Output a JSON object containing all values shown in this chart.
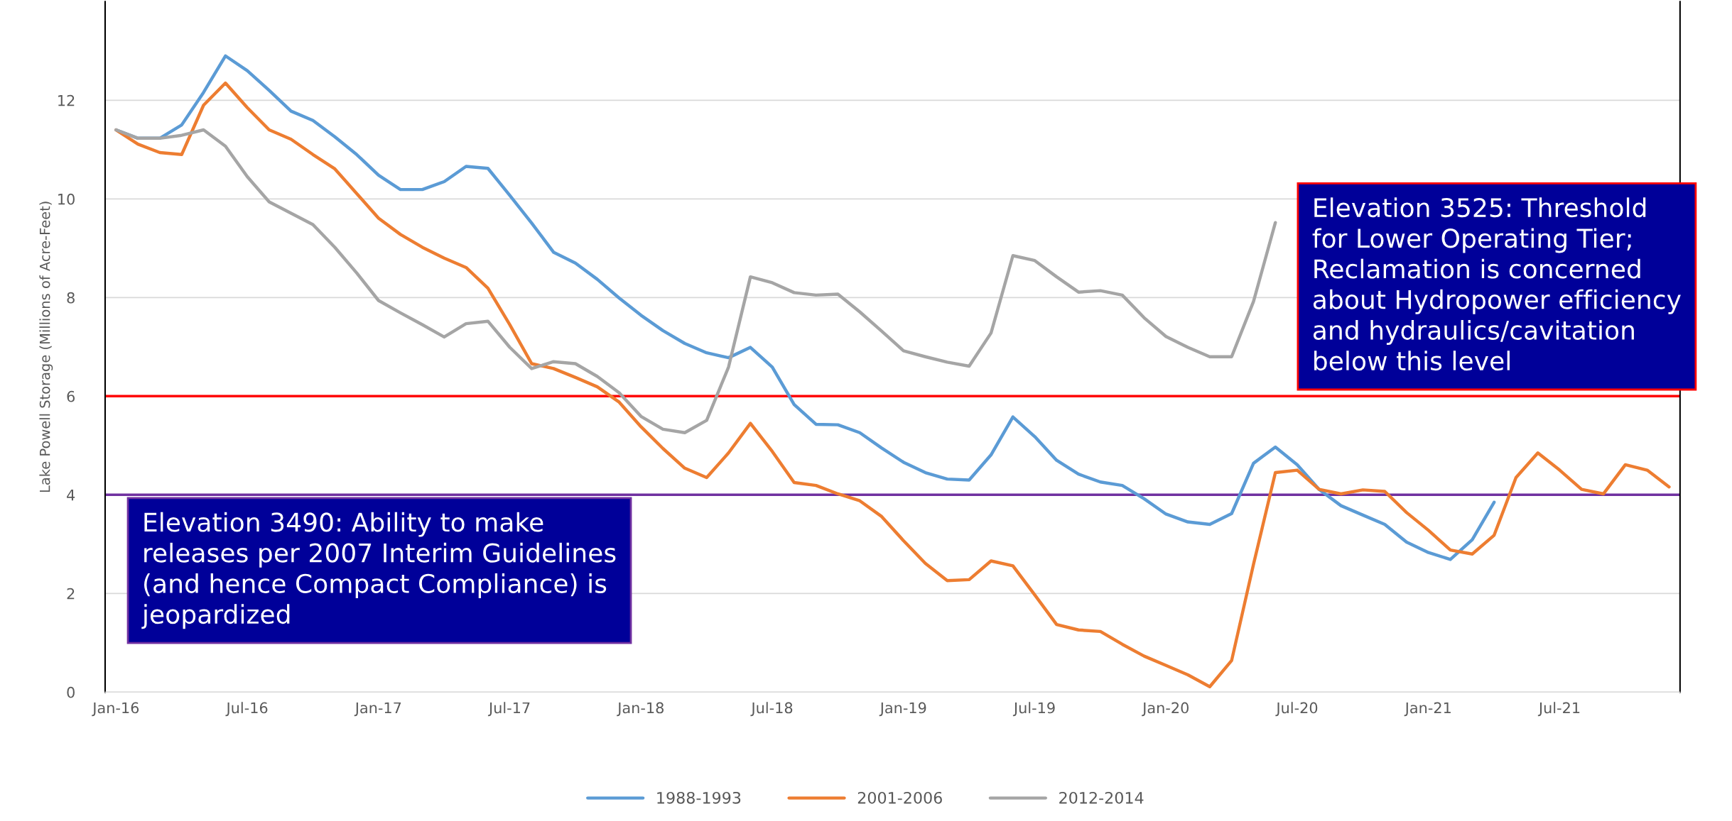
{
  "chart_data": {
    "type": "line",
    "ylabel": "Lake Powell Storage (Millions of Acre-Feet)",
    "categories": [
      "Jan-16",
      null,
      null,
      null,
      null,
      null,
      "Jul-16",
      null,
      null,
      null,
      null,
      null,
      "Jan-17",
      null,
      null,
      null,
      null,
      null,
      "Jul-17",
      null,
      null,
      null,
      null,
      null,
      "Jan-18",
      null,
      null,
      null,
      null,
      null,
      "Jul-18",
      null,
      null,
      null,
      null,
      null,
      "Jan-19",
      null,
      null,
      null,
      null,
      null,
      "Jul-19",
      null,
      null,
      null,
      null,
      null,
      "Jan-20",
      null,
      null,
      null,
      null,
      null,
      "Jul-20",
      null,
      null,
      null,
      null,
      null,
      "Jan-21",
      null,
      null,
      null,
      null,
      null,
      "Jul-21",
      null,
      null,
      null,
      null,
      null
    ],
    "series": [
      {
        "name": "1988-1993",
        "color": "#5b9bd5",
        "values": [
          11.4,
          11.23,
          11.23,
          11.5,
          12.16,
          12.9,
          12.6,
          12.2,
          11.78,
          11.59,
          11.26,
          10.9,
          10.48,
          10.19,
          10.19,
          10.35,
          10.66,
          10.62,
          10.07,
          9.51,
          8.92,
          8.7,
          8.37,
          7.99,
          7.64,
          7.33,
          7.07,
          6.88,
          6.78,
          6.99,
          6.59,
          5.83,
          5.43,
          5.42,
          5.26,
          4.95,
          4.66,
          4.45,
          4.32,
          4.3,
          4.81,
          5.58,
          5.18,
          4.7,
          4.42,
          4.26,
          4.19,
          3.92,
          3.61,
          3.45,
          3.4,
          3.62,
          4.64,
          4.97,
          4.61,
          4.11,
          3.78,
          3.59,
          3.4,
          3.04,
          2.83,
          2.69,
          3.09,
          3.85,
          null,
          null,
          null,
          null,
          null,
          null,
          null,
          null
        ]
      },
      {
        "name": "2001-2006",
        "color": "#ed7d31",
        "values": [
          11.4,
          11.11,
          10.94,
          10.9,
          11.9,
          12.35,
          11.85,
          11.4,
          11.21,
          10.9,
          10.61,
          10.11,
          9.61,
          9.28,
          9.02,
          8.8,
          8.61,
          8.19,
          7.45,
          6.66,
          6.56,
          6.38,
          6.19,
          5.88,
          5.38,
          4.94,
          4.54,
          4.35,
          4.85,
          5.45,
          4.88,
          4.25,
          4.19,
          4.02,
          3.88,
          3.56,
          3.07,
          2.61,
          2.26,
          2.28,
          2.66,
          2.56,
          1.97,
          1.37,
          1.26,
          1.23,
          0.97,
          0.73,
          0.54,
          0.35,
          0.11,
          0.64,
          2.59,
          4.45,
          4.5,
          4.11,
          4.02,
          4.1,
          4.07,
          3.64,
          3.28,
          2.88,
          2.8,
          3.18,
          4.35,
          4.85,
          4.5,
          4.11,
          4.02,
          4.61,
          4.5,
          4.16
        ]
      },
      {
        "name": "2012-2014",
        "color": "#a5a5a5",
        "values": [
          11.4,
          11.23,
          11.23,
          11.29,
          11.4,
          11.07,
          10.45,
          9.94,
          9.71,
          9.48,
          9.02,
          8.5,
          7.94,
          7.69,
          7.45,
          7.2,
          7.47,
          7.52,
          6.99,
          6.56,
          6.7,
          6.66,
          6.4,
          6.07,
          5.59,
          5.33,
          5.26,
          5.51,
          6.59,
          8.42,
          8.3,
          8.1,
          8.05,
          8.07,
          7.71,
          7.32,
          6.92,
          6.8,
          6.69,
          6.61,
          7.28,
          8.85,
          8.75,
          8.42,
          8.11,
          8.14,
          8.05,
          7.59,
          7.21,
          6.99,
          6.8,
          6.8,
          7.92,
          9.52,
          null,
          null,
          null,
          null,
          null,
          null,
          null,
          null,
          null,
          null,
          null,
          null,
          null,
          null,
          null,
          null,
          null,
          null
        ]
      }
    ],
    "ylim": [
      0,
      14
    ],
    "yticks": [
      0,
      2,
      4,
      6,
      8,
      10,
      12
    ],
    "grid": "y",
    "legend": "bottom",
    "marker": "none",
    "line_style": "solid",
    "ref_lines": [
      {
        "axis": "y",
        "value": 6,
        "color": "#ff0000",
        "label": "Elevation 3525: Threshold\nfor Lower Operating Tier;\nReclamation is concerned\nabout Hydropower efficiency\nand hydraulics/cavitation\nbelow this level"
      },
      {
        "axis": "y",
        "value": 4,
        "color": "#7030a0",
        "label": "Elevation 3490: Ability to make\nreleases per 2007 Interim Guidelines\n(and hence Compact Compliance) is\njeopardized"
      }
    ]
  }
}
